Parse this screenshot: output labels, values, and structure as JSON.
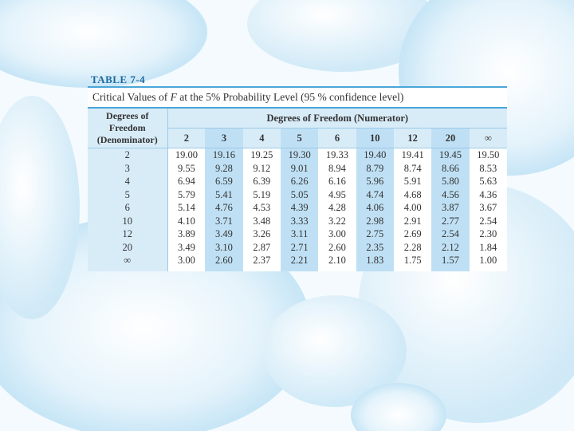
{
  "table": {
    "label": "TABLE 7-4",
    "caption_pre": "Critical Values of ",
    "caption_var": "F",
    "caption_post": " at the 5% Probability Level (95 % confidence level)",
    "denominator_header": [
      "Degrees of",
      "Freedom",
      "(Denominator)"
    ],
    "numerator_header": "Degrees of Freedom (Numerator)",
    "columns": [
      "2",
      "3",
      "4",
      "5",
      "6",
      "10",
      "12",
      "20",
      "∞"
    ],
    "rows": [
      {
        "df": "2",
        "values": [
          "19.00",
          "19.16",
          "19.25",
          "19.30",
          "19.33",
          "19.40",
          "19.41",
          "19.45",
          "19.50"
        ]
      },
      {
        "df": "3",
        "values": [
          "9.55",
          "9.28",
          "9.12",
          "9.01",
          "8.94",
          "8.79",
          "8.74",
          "8.66",
          "8.53"
        ]
      },
      {
        "df": "4",
        "values": [
          "6.94",
          "6.59",
          "6.39",
          "6.26",
          "6.16",
          "5.96",
          "5.91",
          "5.80",
          "5.63"
        ]
      },
      {
        "df": "5",
        "values": [
          "5.79",
          "5.41",
          "5.19",
          "5.05",
          "4.95",
          "4.74",
          "4.68",
          "4.56",
          "4.36"
        ]
      },
      {
        "df": "6",
        "values": [
          "5.14",
          "4.76",
          "4.53",
          "4.39",
          "4.28",
          "4.06",
          "4.00",
          "3.87",
          "3.67"
        ]
      },
      {
        "df": "10",
        "values": [
          "4.10",
          "3.71",
          "3.48",
          "3.33",
          "3.22",
          "2.98",
          "2.91",
          "2.77",
          "2.54"
        ]
      },
      {
        "df": "12",
        "values": [
          "3.89",
          "3.49",
          "3.26",
          "3.11",
          "3.00",
          "2.75",
          "2.69",
          "2.54",
          "2.30"
        ]
      },
      {
        "df": "20",
        "values": [
          "3.49",
          "3.10",
          "2.87",
          "2.71",
          "2.60",
          "2.35",
          "2.28",
          "2.12",
          "1.84"
        ]
      },
      {
        "df": "∞",
        "values": [
          "3.00",
          "2.60",
          "2.37",
          "2.21",
          "2.10",
          "1.83",
          "1.75",
          "1.57",
          "1.00"
        ]
      }
    ]
  },
  "colors": {
    "label": "#1d6a9e",
    "rule": "#4aa6d8",
    "header_fill": "#d8ecf8",
    "stripe_fill": "#bfe0f4"
  }
}
